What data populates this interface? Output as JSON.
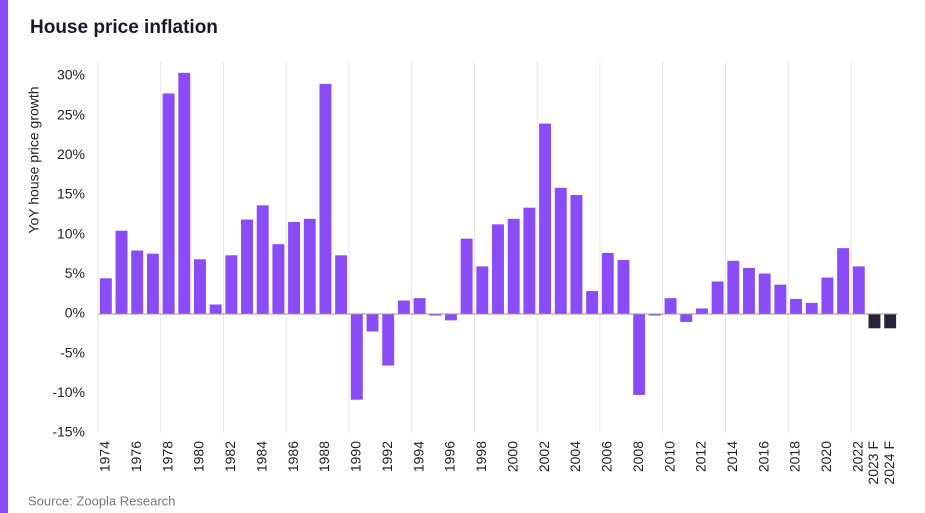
{
  "chart_data": {
    "type": "bar",
    "title": "House price inflation",
    "ylabel": "YoY house price growth",
    "source": "Source: Zoopla Research",
    "categories": [
      "1974",
      null,
      "1976",
      null,
      "1978",
      null,
      "1980",
      null,
      "1982",
      null,
      "1984",
      null,
      "1986",
      null,
      "1988",
      null,
      "1990",
      null,
      "1992",
      null,
      "1994",
      null,
      "1996",
      null,
      "1998",
      null,
      "2000",
      null,
      "2002",
      null,
      "2004",
      null,
      "2006",
      null,
      "2008",
      null,
      "2010",
      null,
      "2012",
      null,
      "2014",
      null,
      "2016",
      null,
      "2018",
      null,
      "2020",
      null,
      "2022",
      "2023 F",
      "2024 F"
    ],
    "values": [
      4.5,
      10.5,
      8,
      7.6,
      27.8,
      30.4,
      6.9,
      1.2,
      7.4,
      11.9,
      13.7,
      8.8,
      11.6,
      12,
      29,
      7.4,
      -10.8,
      -2.2,
      -6.5,
      1.7,
      2,
      -0.2,
      -0.8,
      9.5,
      6,
      11.3,
      12,
      13.4,
      24,
      15.9,
      15,
      2.9,
      7.7,
      6.8,
      -10.2,
      -0.2,
      2,
      -1,
      0.7,
      4.1,
      6.7,
      5.8,
      5.1,
      3.7,
      1.9,
      1.4,
      4.6,
      8.3,
      6,
      -1.8,
      -1.8
    ],
    "colors": [
      "#8a4cf6",
      "#8a4cf6",
      "#8a4cf6",
      "#8a4cf6",
      "#8a4cf6",
      "#8a4cf6",
      "#8a4cf6",
      "#8a4cf6",
      "#8a4cf6",
      "#8a4cf6",
      "#8a4cf6",
      "#8a4cf6",
      "#8a4cf6",
      "#8a4cf6",
      "#8a4cf6",
      "#8a4cf6",
      "#8a4cf6",
      "#8a4cf6",
      "#8a4cf6",
      "#8a4cf6",
      "#8a4cf6",
      "#8a4cf6",
      "#8a4cf6",
      "#8a4cf6",
      "#8a4cf6",
      "#8a4cf6",
      "#8a4cf6",
      "#8a4cf6",
      "#8a4cf6",
      "#8a4cf6",
      "#8a4cf6",
      "#8a4cf6",
      "#8a4cf6",
      "#8a4cf6",
      "#8a4cf6",
      "#8a4cf6",
      "#8a4cf6",
      "#8a4cf6",
      "#8a4cf6",
      "#8a4cf6",
      "#8a4cf6",
      "#8a4cf6",
      "#8a4cf6",
      "#8a4cf6",
      "#8a4cf6",
      "#8a4cf6",
      "#8a4cf6",
      "#8a4cf6",
      "#8a4cf6",
      "#2a2438",
      "#2a2438"
    ],
    "ylim": [
      -15,
      30
    ],
    "yticks": [
      {
        "value": -15,
        "label": "-15%"
      },
      {
        "value": -10,
        "label": "-10%"
      },
      {
        "value": -5,
        "label": "-5%"
      },
      {
        "value": 0,
        "label": "0%"
      },
      {
        "value": 5,
        "label": "5%"
      },
      {
        "value": 10,
        "label": "10%"
      },
      {
        "value": 15,
        "label": "15%"
      },
      {
        "value": 20,
        "label": "20%"
      },
      {
        "value": 25,
        "label": "25%"
      },
      {
        "value": 30,
        "label": "30%"
      }
    ],
    "grid": false
  }
}
